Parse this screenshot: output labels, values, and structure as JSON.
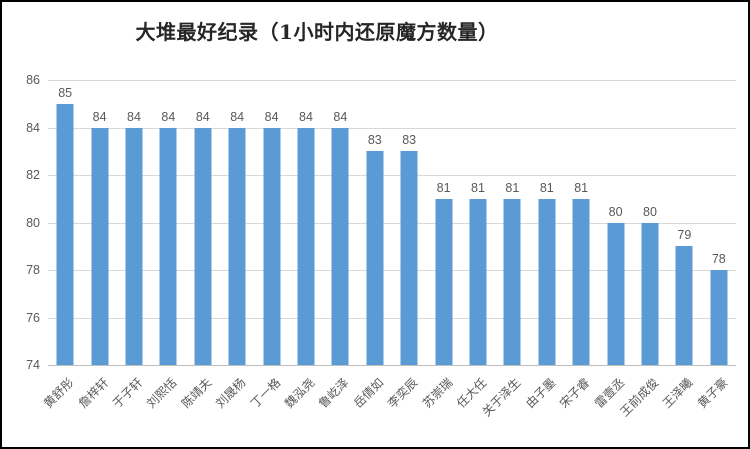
{
  "title": "大堆最好纪录（1小时内还原魔方数量）",
  "colors": {
    "bar": "#5b9bd5",
    "gridline": "#d9d9d9",
    "axis_line": "#bfbfbf",
    "label_text": "#595959",
    "title_text": "#262626",
    "frame_border": "#000000",
    "background": "#ffffff"
  },
  "chart_data": {
    "type": "bar",
    "title": "大堆最好纪录（1小时内还原魔方数量）",
    "categories": [
      "黄舒彤",
      "詹梓轩",
      "于子轩",
      "刘熙恬",
      "陈靖夫",
      "刘晟杨",
      "丁一格",
      "魏泓尧",
      "鲁屹泽",
      "岳倩如",
      "李奕辰",
      "苏崇瑞",
      "任大任",
      "关于泽生",
      "由子墨",
      "宋子睿",
      "雷壹丞",
      "王前成俊",
      "王泽曦",
      "黄子豪"
    ],
    "values": [
      85,
      84,
      84,
      84,
      84,
      84,
      84,
      84,
      84,
      83,
      83,
      81,
      81,
      81,
      81,
      81,
      80,
      80,
      79,
      78
    ],
    "xlabel": "",
    "ylabel": "",
    "ylim": [
      74,
      86
    ],
    "ytick_step": 2,
    "yticks": [
      86,
      84,
      82,
      80,
      78,
      76,
      74
    ],
    "grid": true,
    "data_labels": true,
    "legend": "none"
  }
}
